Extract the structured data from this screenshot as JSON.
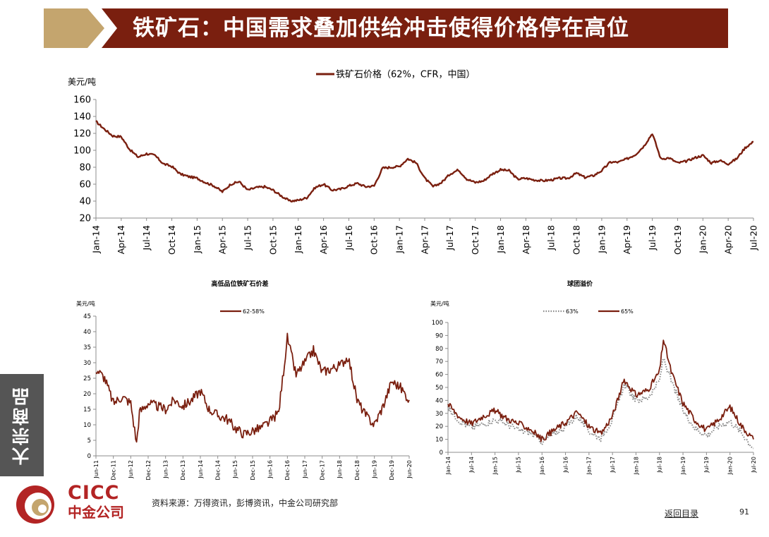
{
  "header": {
    "title": "铁矿石：中国需求叠加供给冲击使得价格停在高位",
    "colors": {
      "bar": "#7a1f0f",
      "arrow": "#c4a56e"
    }
  },
  "side_tab": {
    "label": "大宗商品"
  },
  "footer": {
    "source": "资料来源：万得资讯，彭博资讯，中金公司研究部",
    "back_link": "返回目录",
    "page_number": "91",
    "logo_en": "CICC",
    "logo_cn": "中金公司",
    "logo_colors": {
      "red": "#b32424",
      "gold": "#c4a56e"
    }
  },
  "chart_data": [
    {
      "type": "line",
      "title": "",
      "ylabel": "美元/吨",
      "ylim": [
        20,
        160
      ],
      "yticks": [
        20,
        40,
        60,
        80,
        100,
        120,
        140,
        160
      ],
      "x_ticks": [
        "Jan-14",
        "Apr-14",
        "Jul-14",
        "Oct-14",
        "Jan-15",
        "Apr-15",
        "Jul-15",
        "Oct-15",
        "Jan-16",
        "Apr-16",
        "Jul-16",
        "Oct-16",
        "Jan-17",
        "Apr-17",
        "Jul-17",
        "Oct-17",
        "Jan-18",
        "Apr-18",
        "Jul-18",
        "Oct-18",
        "Jan-19",
        "Apr-19",
        "Jul-19",
        "Oct-19",
        "Jan-20",
        "Apr-20",
        "Jul-20"
      ],
      "legend_position": "top-center",
      "color": "#7a1f0f",
      "series": [
        {
          "name": "铁矿石价格（62%，CFR，中国）",
          "x": [
            "Jan-14",
            "Feb-14",
            "Mar-14",
            "Apr-14",
            "May-14",
            "Jun-14",
            "Jul-14",
            "Aug-14",
            "Sep-14",
            "Oct-14",
            "Nov-14",
            "Dec-14",
            "Jan-15",
            "Feb-15",
            "Mar-15",
            "Apr-15",
            "May-15",
            "Jun-15",
            "Jul-15",
            "Aug-15",
            "Sep-15",
            "Oct-15",
            "Nov-15",
            "Dec-15",
            "Jan-16",
            "Feb-16",
            "Mar-16",
            "Apr-16",
            "May-16",
            "Jun-16",
            "Jul-16",
            "Aug-16",
            "Sep-16",
            "Oct-16",
            "Nov-16",
            "Dec-16",
            "Jan-17",
            "Feb-17",
            "Mar-17",
            "Apr-17",
            "May-17",
            "Jun-17",
            "Jul-17",
            "Aug-17",
            "Sep-17",
            "Oct-17",
            "Nov-17",
            "Dec-17",
            "Jan-18",
            "Feb-18",
            "Mar-18",
            "Apr-18",
            "May-18",
            "Jun-18",
            "Jul-18",
            "Aug-18",
            "Sep-18",
            "Oct-18",
            "Nov-18",
            "Dec-18",
            "Jan-19",
            "Feb-19",
            "Mar-19",
            "Apr-19",
            "May-19",
            "Jun-19",
            "Jul-19",
            "Aug-19",
            "Sep-19",
            "Oct-19",
            "Nov-19",
            "Dec-19",
            "Jan-20",
            "Feb-20",
            "Mar-20",
            "Apr-20",
            "May-20",
            "Jun-20",
            "Jul-20"
          ],
          "values": [
            134,
            125,
            117,
            116,
            101,
            92,
            96,
            94,
            84,
            81,
            72,
            69,
            67,
            62,
            58,
            51,
            60,
            63,
            53,
            56,
            57,
            53,
            46,
            40,
            41,
            44,
            56,
            60,
            53,
            54,
            58,
            61,
            57,
            58,
            79,
            80,
            81,
            90,
            85,
            67,
            57,
            62,
            72,
            77,
            66,
            62,
            64,
            72,
            77,
            76,
            66,
            67,
            65,
            64,
            65,
            67,
            67,
            73,
            68,
            70,
            76,
            86,
            86,
            90,
            95,
            105,
            120,
            90,
            91,
            85,
            87,
            91,
            94,
            85,
            88,
            84,
            90,
            103,
            110
          ]
        }
      ]
    },
    {
      "type": "line",
      "title": "高低品位铁矿石价差",
      "ylabel": "美元/吨",
      "ylim": [
        0,
        45
      ],
      "yticks": [
        0,
        5,
        10,
        15,
        20,
        25,
        30,
        35,
        40,
        45
      ],
      "x_ticks": [
        "Jun-11",
        "Dec-11",
        "Jun-12",
        "Dec-12",
        "Jun-13",
        "Dec-13",
        "Jun-14",
        "Dec-14",
        "Jun-15",
        "Dec-15",
        "Jun-16",
        "Dec-16",
        "Jun-17",
        "Dec-17",
        "Jun-18",
        "Dec-18",
        "Jun-19",
        "Dec-19",
        "Jun-20"
      ],
      "legend_position": "top-center",
      "color": "#7a1f0f",
      "series": [
        {
          "name": "62-58%",
          "x": [
            "Jun-11",
            "Sep-11",
            "Dec-11",
            "Mar-12",
            "Jun-12",
            "Aug-12",
            "Sep-12",
            "Dec-12",
            "Mar-13",
            "Jun-13",
            "Sep-13",
            "Dec-13",
            "Mar-14",
            "Jun-14",
            "Sep-14",
            "Dec-14",
            "Mar-15",
            "Jun-15",
            "Sep-15",
            "Dec-15",
            "Mar-16",
            "Jun-16",
            "Sep-16",
            "Nov-16",
            "Dec-16",
            "Mar-17",
            "Jun-17",
            "Sep-17",
            "Dec-17",
            "Mar-18",
            "Jun-18",
            "Sep-18",
            "Dec-18",
            "Mar-19",
            "Jun-19",
            "Sep-19",
            "Dec-19",
            "Mar-20",
            "Jun-20"
          ],
          "values": [
            28,
            25,
            17,
            19,
            17,
            4,
            14,
            17,
            16,
            15,
            18,
            16,
            18,
            21,
            15,
            13,
            12,
            9,
            7,
            8,
            9,
            11,
            14,
            30,
            38,
            26,
            30,
            34,
            27,
            28,
            29,
            32,
            18,
            13,
            10,
            16,
            24,
            22,
            18
          ]
        }
      ]
    },
    {
      "type": "line",
      "title": "球团溢价",
      "ylabel": "美元/吨",
      "ylim": [
        0,
        100
      ],
      "yticks": [
        0,
        10,
        20,
        30,
        40,
        50,
        60,
        70,
        80,
        90,
        100
      ],
      "x_ticks": [
        "Jan-14",
        "Jul-14",
        "Jan-15",
        "Jul-15",
        "Jan-16",
        "Jul-16",
        "Jan-17",
        "Jul-17",
        "Jan-18",
        "Jul-18",
        "Jan-19",
        "Jul-19",
        "Jan-20",
        "Jul-20"
      ],
      "legend_position": "top-center",
      "series": [
        {
          "name": "63%",
          "color": "#8a8a8a",
          "x": [
            "Jan-14",
            "Apr-14",
            "Jul-14",
            "Oct-14",
            "Jan-15",
            "Apr-15",
            "Jul-15",
            "Oct-15",
            "Jan-16",
            "Apr-16",
            "Jul-16",
            "Oct-16",
            "Jan-17",
            "Apr-17",
            "Jul-17",
            "Oct-17",
            "Jan-18",
            "Apr-18",
            "Jul-18",
            "Aug-18",
            "Oct-18",
            "Jan-19",
            "Apr-19",
            "Jul-19",
            "Oct-19",
            "Jan-20",
            "Apr-20",
            "Jul-20"
          ],
          "values": [
            34,
            24,
            19,
            22,
            25,
            22,
            17,
            15,
            8,
            14,
            20,
            28,
            16,
            11,
            25,
            52,
            40,
            42,
            55,
            73,
            55,
            32,
            19,
            13,
            20,
            24,
            15,
            3
          ]
        },
        {
          "name": "65%",
          "color": "#7a1f0f",
          "x": [
            "Jan-14",
            "Apr-14",
            "Jul-14",
            "Oct-14",
            "Jan-15",
            "Apr-15",
            "Jul-15",
            "Oct-15",
            "Jan-16",
            "Apr-16",
            "Jul-16",
            "Oct-16",
            "Jan-17",
            "Apr-17",
            "Jul-17",
            "Oct-17",
            "Jan-18",
            "Apr-18",
            "Jul-18",
            "Aug-18",
            "Oct-18",
            "Jan-19",
            "Apr-19",
            "Jul-19",
            "Oct-19",
            "Jan-20",
            "Apr-20",
            "Jul-20"
          ],
          "values": [
            37,
            27,
            22,
            28,
            32,
            26,
            22,
            18,
            10,
            17,
            23,
            31,
            20,
            14,
            28,
            56,
            44,
            48,
            62,
            87,
            62,
            38,
            25,
            17,
            25,
            35,
            20,
            10
          ]
        }
      ]
    }
  ]
}
